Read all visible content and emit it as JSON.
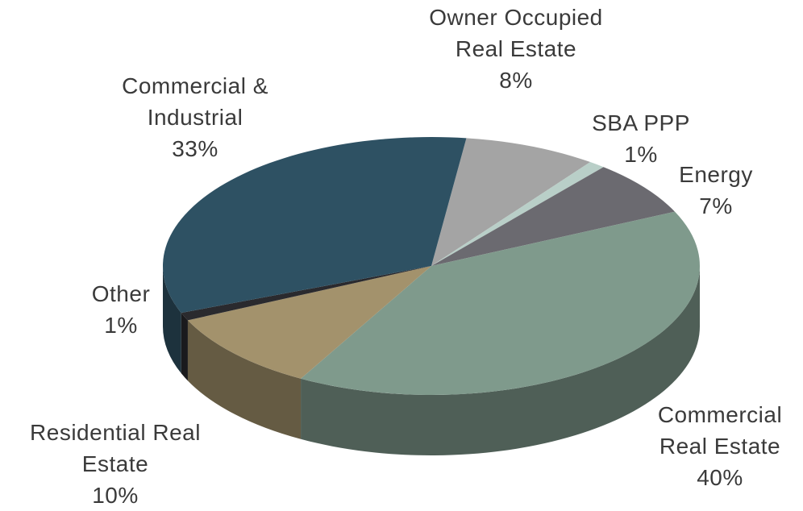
{
  "chart_data": {
    "type": "pie3d",
    "categories": [
      "Owner Occupied Real Estate",
      "SBA PPP",
      "Energy",
      "Commercial Real Estate",
      "Residential Real Estate",
      "Other",
      "Commercial & Industrial"
    ],
    "values": [
      8,
      1,
      7,
      40,
      10,
      1,
      33
    ],
    "value_labels": [
      "8%",
      "1%",
      "7%",
      "40%",
      "10%",
      "1%",
      "33%"
    ],
    "colors": [
      "#a4a4a4",
      "#b9cfc8",
      "#6b6a70",
      "#7f9a8c",
      "#a3926c",
      "#2a2a2e",
      "#2e5163"
    ]
  }
}
